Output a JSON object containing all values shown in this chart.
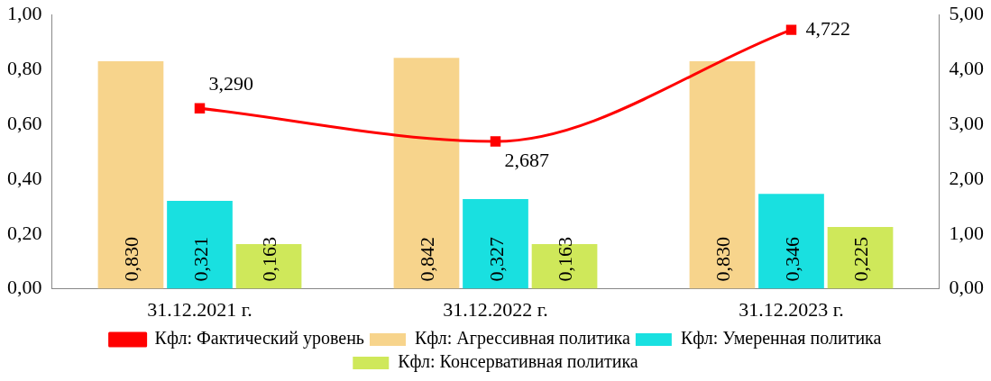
{
  "chart_data": {
    "type": "bar",
    "categories": [
      "31.12.2021 г.",
      "31.12.2022 г.",
      "31.12.2023 г."
    ],
    "series": [
      {
        "name": "Кфл: Агрессивная политика",
        "color": "#f7d48c",
        "values": [
          0.83,
          0.842,
          0.83
        ],
        "value_labels": [
          "0,830",
          "0,842",
          "0,830"
        ]
      },
      {
        "name": "Кфл: Умеренная политика",
        "color": "#19e0e0",
        "values": [
          0.321,
          0.327,
          0.346
        ],
        "value_labels": [
          "0,321",
          "0,327",
          "0,346"
        ]
      },
      {
        "name": "Кфл: Консервативная политика",
        "color": "#cfe85a",
        "values": [
          0.163,
          0.163,
          0.225
        ],
        "value_labels": [
          "0,163",
          "0,163",
          "0,225"
        ]
      },
      {
        "name": "Кфл: Фактический уровень",
        "type": "line",
        "axis": "y2",
        "color": "#ff0000",
        "values": [
          3.29,
          2.687,
          4.722
        ],
        "value_labels": [
          "3,290",
          "2,687",
          "4,722"
        ]
      }
    ],
    "ylim": [
      0,
      1
    ],
    "yticks": [
      {
        "value": 0,
        "label": "0,00"
      },
      {
        "value": 0.2,
        "label": "0,20"
      },
      {
        "value": 0.4,
        "label": "0,40"
      },
      {
        "value": 0.6,
        "label": "0,60"
      },
      {
        "value": 0.8,
        "label": "0,80"
      },
      {
        "value": 1,
        "label": "1,00"
      }
    ],
    "y2lim": [
      0,
      5
    ],
    "y2ticks": [
      {
        "value": 0,
        "label": "0,00"
      },
      {
        "value": 1,
        "label": "1,00"
      },
      {
        "value": 2,
        "label": "2,00"
      },
      {
        "value": 3,
        "label": "3,00"
      },
      {
        "value": 4,
        "label": "4,00"
      },
      {
        "value": 5,
        "label": "5,00"
      }
    ],
    "grid": false,
    "legend": "bottom",
    "marker": "square",
    "line_style": "solid"
  }
}
